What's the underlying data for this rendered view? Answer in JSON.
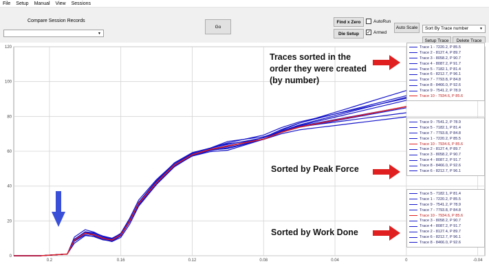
{
  "menu": {
    "items": [
      {
        "label": "File",
        "name": "menu-file"
      },
      {
        "label": "Setup",
        "name": "menu-setup"
      },
      {
        "label": "Manual",
        "name": "menu-manual"
      },
      {
        "label": "View",
        "name": "menu-view"
      },
      {
        "label": "Sessions",
        "name": "menu-sessions"
      }
    ]
  },
  "toolbar": {
    "compare_label": "Compare Session Records",
    "session_select_value": "",
    "go_label": "Go",
    "find_zero_label": "Find x Zero",
    "die_setup_label": "Die Setup",
    "autorun_label": "AutoRun",
    "autorun_checked": false,
    "armed_label": "Armed",
    "armed_checked": true,
    "auto_scale_label": "Auto Scale",
    "sort_select_value": "Sort By Trace number",
    "setup_trace_label": "Setup Trace",
    "delete_trace_label": "Delete Trace"
  },
  "chart_data": {
    "type": "line",
    "x_ticks": [
      "0.2",
      "0.16",
      "0.12",
      "0.08",
      "0.04",
      "0",
      "-0.04"
    ],
    "y_ticks": [
      "0",
      "20",
      "40",
      "60",
      "80",
      "100",
      "120"
    ],
    "xlim": [
      0.22,
      -0.044
    ],
    "ylim": [
      0,
      120
    ],
    "grid": true,
    "colors": {
      "trace": "#1414c8",
      "highlight": "#e01c1c",
      "grid": "#d4d4d4"
    },
    "series": [
      {
        "name": "Trace 1",
        "offset": 0.8,
        "final": 85.5
      },
      {
        "name": "Trace 2",
        "offset": -0.8,
        "final": 89.7
      },
      {
        "name": "Trace 3",
        "offset": 1.5,
        "final": 90.7
      },
      {
        "name": "Trace 4",
        "offset": -1.2,
        "final": 91.7
      },
      {
        "name": "Trace 5",
        "offset": 2.2,
        "final": 81.4
      },
      {
        "name": "Trace 6",
        "offset": -2.0,
        "final": 96.1
      },
      {
        "name": "Trace 7",
        "offset": 0.2,
        "final": 84.8
      },
      {
        "name": "Trace 8",
        "offset": -0.3,
        "final": 92.6
      },
      {
        "name": "Trace 9",
        "offset": 1.1,
        "final": 78.9
      },
      {
        "name": "Trace 10",
        "offset": 0,
        "final": 85.6,
        "highlight": true
      }
    ],
    "base_curve": [
      [
        0.22,
        0
      ],
      [
        0.205,
        0
      ],
      [
        0.19,
        1
      ],
      [
        0.186,
        9
      ],
      [
        0.18,
        13
      ],
      [
        0.175,
        12
      ],
      [
        0.17,
        10
      ],
      [
        0.165,
        9
      ],
      [
        0.16,
        12
      ],
      [
        0.155,
        20
      ],
      [
        0.15,
        30
      ],
      [
        0.14,
        42
      ],
      [
        0.13,
        52
      ],
      [
        0.12,
        58
      ],
      [
        0.11,
        61
      ],
      [
        0.1,
        63
      ],
      [
        0.09,
        65
      ],
      [
        0.08,
        67
      ],
      [
        0.07,
        71
      ],
      [
        0.06,
        74
      ],
      [
        0.05,
        76
      ],
      [
        0.04,
        78
      ],
      [
        0.03,
        80
      ],
      [
        0.02,
        82
      ],
      [
        0.01,
        84
      ],
      [
        0,
        86
      ]
    ]
  },
  "legends": {
    "by_number": [
      {
        "label": "Trace 1 - 7220.2, P 85.5",
        "color": "#1414c8"
      },
      {
        "label": "Trace 2 - 8127.4, P 89.7",
        "color": "#1414c8"
      },
      {
        "label": "Trace 3 - 8058.2, P 90.7",
        "color": "#1414c8"
      },
      {
        "label": "Trace 4 - 8087.2, P 91.7",
        "color": "#1414c8"
      },
      {
        "label": "Trace 5 - 7182.1, P 81.4",
        "color": "#1414c8"
      },
      {
        "label": "Trace 6 - 8212.7, P 96.1",
        "color": "#1414c8"
      },
      {
        "label": "Trace 7 - 7793.8, P 84.8",
        "color": "#1414c8"
      },
      {
        "label": "Trace 8 - 8466.0, P 92.6",
        "color": "#1414c8"
      },
      {
        "label": "Trace 9 - 7541.2, P 78.9",
        "color": "#1414c8"
      },
      {
        "label": "Trace 10 - 7934.6, P 85.6",
        "color": "#e01c1c"
      }
    ],
    "by_peak": [
      {
        "label": "Trace 9 - 7541.2, P 78.9",
        "color": "#1414c8"
      },
      {
        "label": "Trace 5 - 7182.1, P 81.4",
        "color": "#1414c8"
      },
      {
        "label": "Trace 7 - 7793.8, P 84.8",
        "color": "#1414c8"
      },
      {
        "label": "Trace 1 - 7220.2, P 85.5",
        "color": "#1414c8"
      },
      {
        "label": "Trace 10 - 7934.6, P 85.6",
        "color": "#e01c1c"
      },
      {
        "label": "Trace 2 - 8127.4, P 89.7",
        "color": "#1414c8"
      },
      {
        "label": "Trace 3 - 8058.2, P 90.7",
        "color": "#1414c8"
      },
      {
        "label": "Trace 4 - 8087.2, P 91.7",
        "color": "#1414c8"
      },
      {
        "label": "Trace 8 - 8466.0, P 92.6",
        "color": "#1414c8"
      },
      {
        "label": "Trace 6 - 8212.7, P 96.1",
        "color": "#1414c8"
      }
    ],
    "by_work": [
      {
        "label": "Trace 5 - 7182.1, P 81.4",
        "color": "#1414c8"
      },
      {
        "label": "Trace 1 - 7220.2, P 85.5",
        "color": "#1414c8"
      },
      {
        "label": "Trace 9 - 7541.2, P 78.9",
        "color": "#1414c8"
      },
      {
        "label": "Trace 7 - 7793.8, P 84.8",
        "color": "#1414c8"
      },
      {
        "label": "Trace 10 - 7934.6, P 85.6",
        "color": "#e01c1c"
      },
      {
        "label": "Trace 3 - 8058.2, P 90.7",
        "color": "#1414c8"
      },
      {
        "label": "Trace 4 - 8087.2, P 91.7",
        "color": "#1414c8"
      },
      {
        "label": "Trace 2 - 8127.4, P 89.7",
        "color": "#1414c8"
      },
      {
        "label": "Trace 6 - 8212.7, P 96.1",
        "color": "#1414c8"
      },
      {
        "label": "Trace 8 - 8466.0, P 92.6",
        "color": "#1414c8"
      }
    ]
  },
  "annotations": {
    "by_number_text": "Traces sorted in the order they were created (by number)",
    "by_peak_text": "Sorted by Peak Force",
    "by_work_text": "Sorted by Work Done",
    "arrow_color": "#e02020",
    "blue_arrow_color": "#3a4fd8"
  }
}
